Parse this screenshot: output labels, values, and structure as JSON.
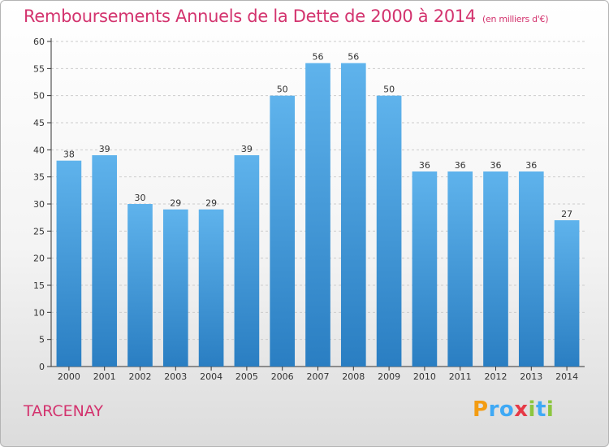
{
  "title": "Remboursements Annuels de la Dette de 2000 à 2014",
  "unit_note": "(en milliers d'€)",
  "place_name": "TARCENAY",
  "logo": {
    "text": "Proxiti",
    "letters": [
      {
        "ch": "P",
        "color": "#f39c12"
      },
      {
        "ch": "r",
        "color": "#3fa9f5"
      },
      {
        "ch": "o",
        "color": "#3fa9f5"
      },
      {
        "ch": "x",
        "color": "#e63946"
      },
      {
        "ch": "i",
        "color": "#8cc63f"
      },
      {
        "ch": "t",
        "color": "#3fa9f5"
      },
      {
        "ch": "i",
        "color": "#8cc63f"
      }
    ]
  },
  "colors": {
    "bar_top": "#5fb3ec",
    "bar_bottom": "#2a7ec2",
    "grid": "#cccccc",
    "axis": "#333333",
    "title": "#d3336e"
  },
  "chart_data": {
    "type": "bar",
    "categories": [
      "2000",
      "2001",
      "2002",
      "2003",
      "2004",
      "2005",
      "2006",
      "2007",
      "2008",
      "2009",
      "2010",
      "2011",
      "2012",
      "2013",
      "2014"
    ],
    "values": [
      38,
      39,
      30,
      29,
      29,
      39,
      50,
      56,
      56,
      50,
      36,
      36,
      36,
      36,
      27
    ],
    "ylim": [
      0,
      60
    ],
    "yticks": [
      0,
      5,
      10,
      15,
      20,
      25,
      30,
      35,
      40,
      45,
      50,
      55,
      60
    ],
    "grid": true,
    "xlabel": "",
    "ylabel": ""
  }
}
